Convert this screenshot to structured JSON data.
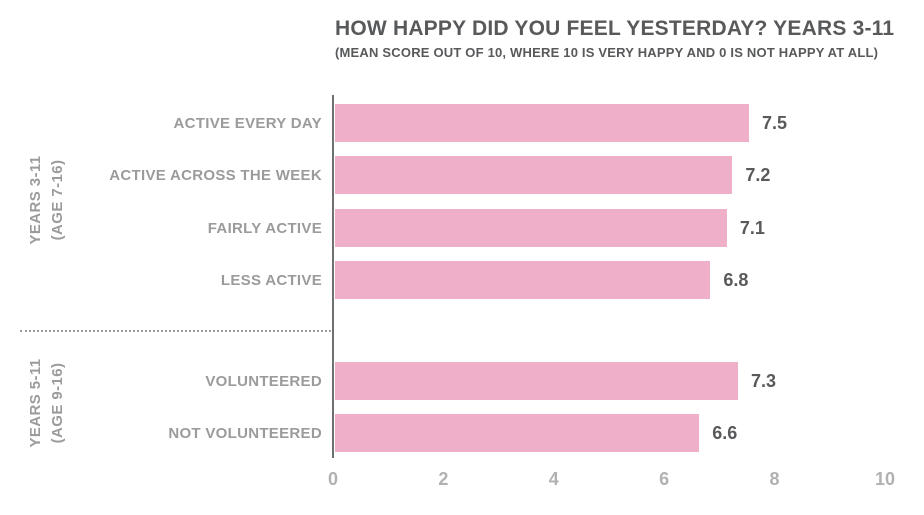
{
  "chart_data": {
    "type": "bar",
    "orientation": "horizontal",
    "title": "HOW HAPPY DID YOU FEEL YESTERDAY? YEARS 3-11",
    "subtitle": "(MEAN SCORE OUT OF 10, WHERE 10 IS VERY HAPPY AND 0 IS NOT HAPPY AT ALL)",
    "categories": [
      "ACTIVE EVERY DAY",
      "ACTIVE ACROSS THE WEEK",
      "FAIRLY ACTIVE",
      "LESS ACTIVE",
      "VOLUNTEERED",
      "NOT VOLUNTEERED"
    ],
    "values": [
      7.5,
      7.2,
      7.1,
      6.8,
      7.3,
      6.6
    ],
    "value_labels": [
      "7.5",
      "7.2",
      "7.1",
      "6.8",
      "7.3",
      "6.6"
    ],
    "xlim": [
      0,
      10
    ],
    "xticks": [
      "0",
      "2",
      "4",
      "6",
      "8",
      "10"
    ],
    "grid": false,
    "legend": false,
    "groups": [
      {
        "label_line1": "YEARS 3-11",
        "label_line2": "(AGE 7-16)",
        "rows": [
          0,
          1,
          2,
          3
        ]
      },
      {
        "label_line1": "YEARS 5-11",
        "label_line2": "(AGE 9-16)",
        "rows": [
          4,
          5
        ]
      }
    ],
    "colors": {
      "bar": "#F0AFC8",
      "title_text": "#58595B",
      "value_text": "#58595B",
      "category_text": "#9B9B9B",
      "tick_text": "#B1B1B1",
      "axis_line": "#6F7072"
    }
  }
}
